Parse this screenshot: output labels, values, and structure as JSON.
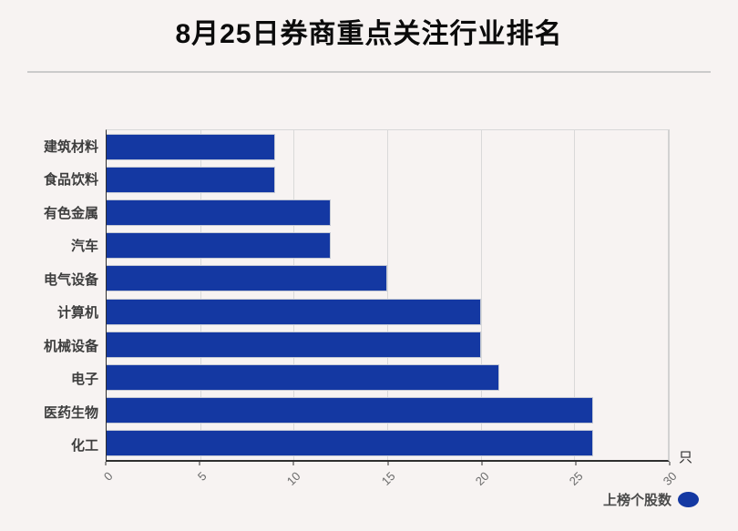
{
  "title": "8月25日券商重点关注行业排名",
  "axis_unit": "只",
  "legend": {
    "label": "上榜个股数"
  },
  "colors": {
    "bar": "#1438a2",
    "background": "#f7f3f2"
  },
  "chart_data": {
    "type": "bar",
    "orientation": "horizontal",
    "title": "8月25日券商重点关注行业排名",
    "categories": [
      "建筑材料",
      "食品饮料",
      "有色金属",
      "汽车",
      "电气设备",
      "计算机",
      "机械设备",
      "电子",
      "医药生物",
      "化工"
    ],
    "values": [
      9,
      9,
      12,
      12,
      15,
      20,
      20,
      21,
      26,
      26
    ],
    "series_name": "上榜个股数",
    "xlabel": "只",
    "ylabel": "",
    "xlim": [
      0,
      30
    ],
    "xticks": [
      0,
      5,
      10,
      15,
      20,
      25,
      30
    ],
    "grid": true,
    "legend_position": "bottom-right"
  }
}
